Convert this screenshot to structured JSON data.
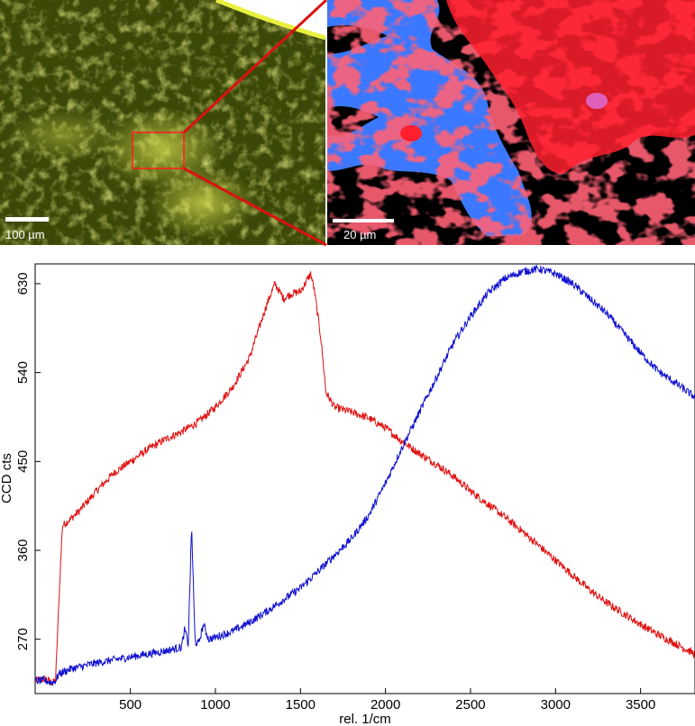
{
  "panels": {
    "microscope": {
      "scale_label": "100 µm",
      "colors": {
        "base": "#3d4a08",
        "highlight": "#d8e050",
        "edge": "#e8f040",
        "roi": "#ff1a1a"
      }
    },
    "raman_map": {
      "scale_label": "20 µm",
      "colors": {
        "blue": "#3a78ff",
        "red": "#ff1f2e",
        "background": "#000000",
        "zoom_lines": "#dd1111"
      }
    }
  },
  "chart_data": {
    "type": "line",
    "xlabel": "rel. 1/cm",
    "ylabel": "CCD cts",
    "xlim": [
      -60,
      3820
    ],
    "ylim": [
      215,
      650
    ],
    "x_ticks": [
      500,
      1000,
      1500,
      2000,
      2500,
      3000,
      3500
    ],
    "y_ticks": [
      270,
      360,
      450,
      540,
      630
    ],
    "grid": false,
    "series": [
      {
        "color": "#e01010",
        "x": [
          -60,
          0,
          40,
          60,
          80,
          100,
          150,
          200,
          300,
          400,
          500,
          600,
          700,
          800,
          900,
          1000,
          1100,
          1200,
          1300,
          1350,
          1400,
          1450,
          1500,
          1560,
          1580,
          1620,
          1650,
          1700,
          1800,
          1900,
          2000,
          2100,
          2200,
          2300,
          2400,
          2500,
          2600,
          2700,
          2800,
          2900,
          3000,
          3100,
          3200,
          3300,
          3400,
          3500,
          3600,
          3700,
          3820
        ],
        "y": [
          228,
          230,
          226,
          228,
          310,
          385,
          392,
          400,
          420,
          438,
          450,
          462,
          472,
          480,
          490,
          505,
          525,
          555,
          608,
          630,
          615,
          620,
          622,
          640,
          625,
          575,
          520,
          505,
          500,
          494,
          484,
          470,
          458,
          447,
          435,
          420,
          407,
          394,
          380,
          365,
          350,
          335,
          320,
          307,
          296,
          285,
          275,
          266,
          255
        ]
      },
      {
        "color": "#1010d0",
        "x": [
          -60,
          0,
          40,
          60,
          80,
          150,
          300,
          500,
          700,
          800,
          820,
          840,
          860,
          880,
          900,
          930,
          960,
          1000,
          1100,
          1200,
          1300,
          1400,
          1500,
          1600,
          1700,
          1800,
          1900,
          2000,
          2100,
          2200,
          2300,
          2400,
          2500,
          2600,
          2700,
          2800,
          2900,
          3000,
          3100,
          3200,
          3300,
          3400,
          3500,
          3600,
          3700,
          3820
        ],
        "y": [
          228,
          228,
          226,
          228,
          235,
          240,
          246,
          252,
          258,
          262,
          280,
          265,
          385,
          268,
          265,
          285,
          270,
          272,
          278,
          287,
          298,
          310,
          322,
          338,
          355,
          372,
          395,
          428,
          465,
          500,
          535,
          570,
          597,
          620,
          635,
          642,
          645,
          640,
          630,
          615,
          600,
          580,
          560,
          542,
          530,
          515
        ]
      }
    ]
  }
}
